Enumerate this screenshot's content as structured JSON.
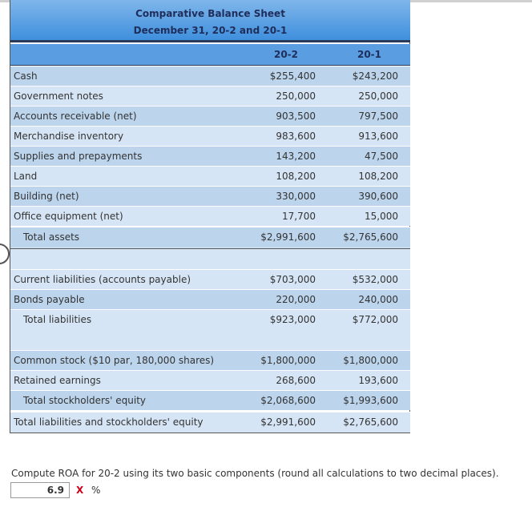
{
  "header": {
    "title": "Comparative Balance Sheet",
    "subtitle": "December 31, 20-2 and 20-1"
  },
  "table": {
    "columns": [
      "20-2",
      "20-1"
    ],
    "rows": [
      [
        "Cash",
        "$255,400",
        "$243,200"
      ],
      [
        "Government notes",
        "250,000",
        "250,000"
      ],
      [
        "Accounts receivable (net)",
        "903,500",
        "797,500"
      ],
      [
        "Merchandise inventory",
        "983,600",
        "913,600"
      ],
      [
        "Supplies and prepayments",
        "143,200",
        "47,500"
      ],
      [
        "Land",
        "108,200",
        "108,200"
      ],
      [
        "Building (net)",
        "330,000",
        "390,600"
      ],
      [
        "Office equipment (net)",
        "17,700",
        "15,000"
      ],
      [
        "Total assets",
        "$2,991,600",
        "$2,765,600"
      ],
      [
        "Current liabilities (accounts payable)",
        "$703,000",
        "$532,000"
      ],
      [
        "Bonds payable",
        "220,000",
        "240,000"
      ],
      [
        "Total liabilities",
        "$923,000",
        "$772,000"
      ],
      [
        "Common stock ($10 par, 180,000 shares)",
        "$1,800,000",
        "$1,800,000"
      ],
      [
        "Retained earnings",
        "268,600",
        "193,600"
      ],
      [
        "Total stockholders' equity",
        "$2,068,600",
        "$1,993,600"
      ],
      [
        "Total liabilities and stockholders' equity",
        "$2,991,600",
        "$2,765,600"
      ]
    ]
  },
  "question": {
    "prompt": "Compute ROA for 20-2 using its two basic components (round all calculations to two decimal places).",
    "answer": "6.9",
    "mark": "X",
    "unit": "%"
  }
}
